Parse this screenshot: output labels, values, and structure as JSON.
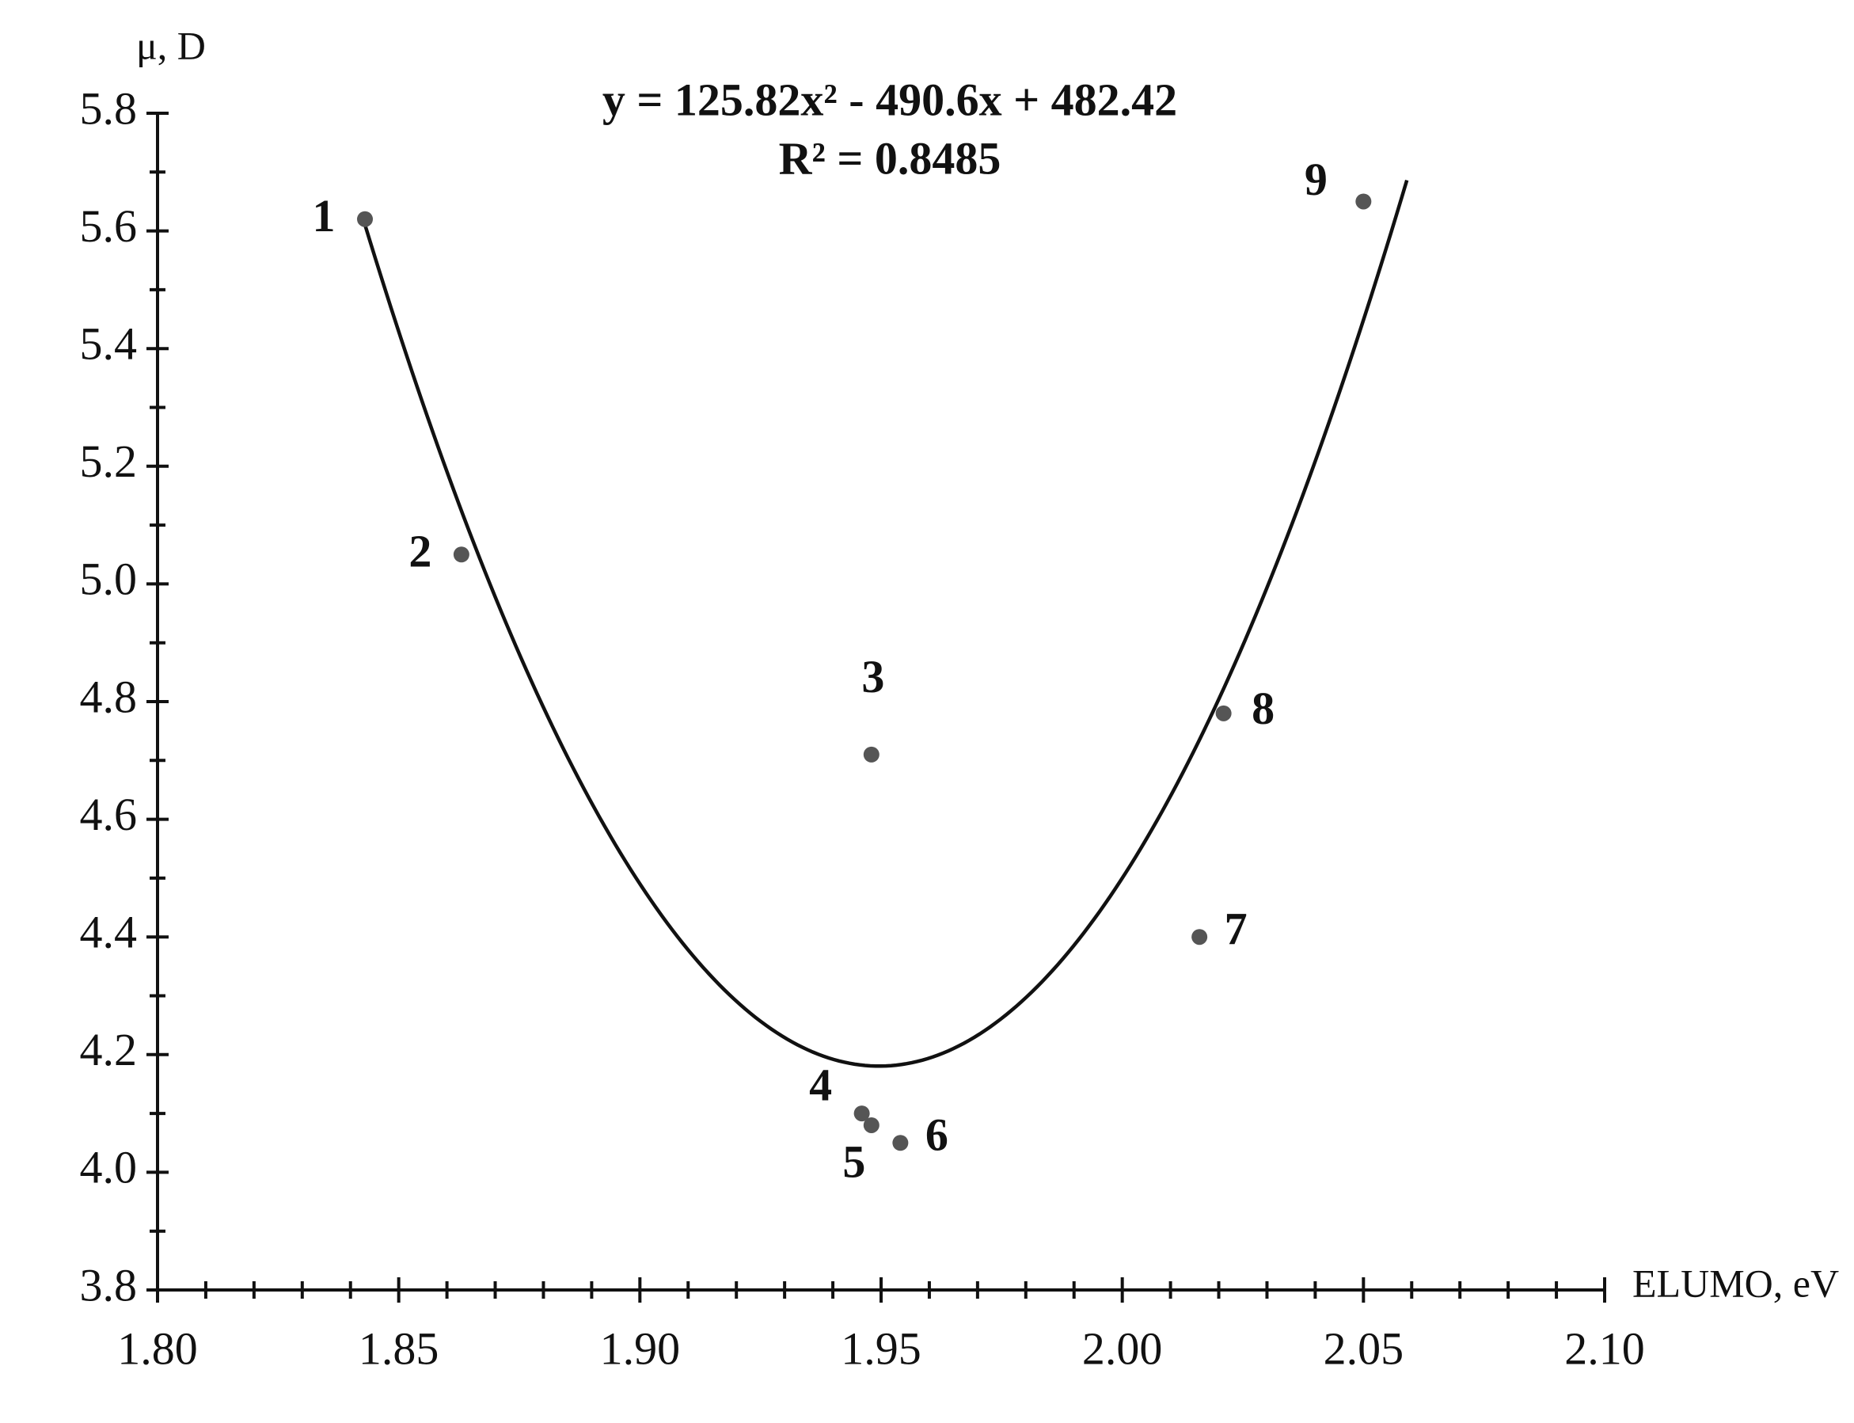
{
  "chart_data": {
    "type": "scatter",
    "title": "y = 125.82x² - 490.6x + 482.42",
    "subtitle": "R² = 0.8485",
    "x_label": "ELUMO, eV",
    "y_label": "μ, D",
    "x": [
      1.843,
      1.863,
      1.948,
      1.946,
      1.948,
      1.954,
      2.016,
      2.021,
      2.05
    ],
    "values": [
      5.62,
      5.05,
      4.71,
      4.1,
      4.08,
      4.05,
      4.4,
      4.78,
      5.65
    ],
    "point_labels": [
      "1",
      "2",
      "3",
      "4",
      "5",
      "6",
      "7",
      "8",
      "9"
    ],
    "color": "#555555",
    "trendline": {
      "coefficients": [
        125.82,
        -490.6,
        482.42
      ],
      "x_range": [
        1.843,
        2.059
      ],
      "color": "#111111"
    },
    "xlim": [
      1.8,
      2.1
    ],
    "ylim": [
      3.8,
      5.8
    ],
    "xticks": [
      {
        "value": 1.8,
        "label": "1.80"
      },
      1.85,
      {
        "value": 1.9,
        "label": "1.90"
      },
      1.95,
      {
        "value": 2.0,
        "label": "2.00"
      },
      2.05,
      {
        "value": 2.1,
        "label": "2.10"
      }
    ],
    "yticks": [
      3.8,
      {
        "value": 4.0,
        "label": "4.0"
      },
      4.2,
      4.4,
      4.6,
      4.8,
      {
        "value": 5.0,
        "label": "5.0"
      },
      5.2,
      5.4,
      5.6,
      5.8
    ],
    "grid": false
  }
}
